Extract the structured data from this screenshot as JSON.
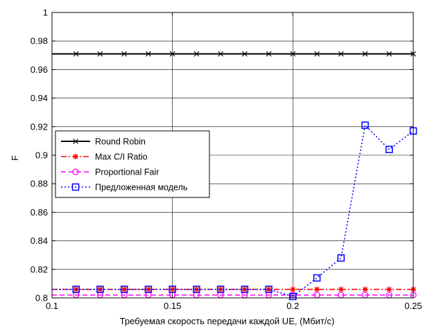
{
  "chart_data": {
    "type": "line",
    "title": "",
    "xlabel": "Требуемая скорость передачи каждой UE, (Мбит/с)",
    "ylabel": "F",
    "xlim": [
      0.1,
      0.25
    ],
    "ylim": [
      0.8,
      1.0
    ],
    "x_ticks": [
      "0.1",
      "0.15",
      "0.2",
      "0.25"
    ],
    "y_ticks": [
      "0.8",
      "0.82",
      "0.84",
      "0.86",
      "0.88",
      "0.9",
      "0.92",
      "0.94",
      "0.96",
      "0.98",
      "1"
    ],
    "grid": true,
    "legend_position": "middle-left",
    "x": [
      0.11,
      0.12,
      0.13,
      0.14,
      0.15,
      0.16,
      0.17,
      0.18,
      0.19,
      0.2,
      0.21,
      0.22,
      0.23,
      0.24,
      0.25
    ],
    "series": [
      {
        "name": "Round Robin",
        "color": "#000000",
        "line_style": "solid",
        "marker": "x",
        "values": [
          0.971,
          0.971,
          0.971,
          0.971,
          0.971,
          0.971,
          0.971,
          0.971,
          0.971,
          0.971,
          0.971,
          0.971,
          0.971,
          0.971,
          0.971
        ]
      },
      {
        "name": "Max C/I Ratio",
        "color": "#ff0000",
        "line_style": "dash-dot",
        "marker": "asterisk",
        "values": [
          0.806,
          0.806,
          0.806,
          0.806,
          0.806,
          0.806,
          0.806,
          0.806,
          0.806,
          0.806,
          0.806,
          0.806,
          0.806,
          0.806,
          0.806
        ]
      },
      {
        "name": "Proportional Fair",
        "color": "#ff00ff",
        "line_style": "dashed",
        "marker": "circle",
        "values": [
          0.802,
          0.802,
          0.802,
          0.802,
          0.802,
          0.802,
          0.802,
          0.802,
          0.802,
          0.802,
          0.802,
          0.802,
          0.802,
          0.802,
          0.802
        ]
      },
      {
        "name": "Предложенная модель",
        "color": "#0000ff",
        "line_style": "dotted",
        "marker": "square",
        "values": [
          0.806,
          0.806,
          0.806,
          0.806,
          0.806,
          0.806,
          0.806,
          0.806,
          0.806,
          0.801,
          0.814,
          0.828,
          0.921,
          0.904,
          0.917
        ]
      }
    ]
  }
}
